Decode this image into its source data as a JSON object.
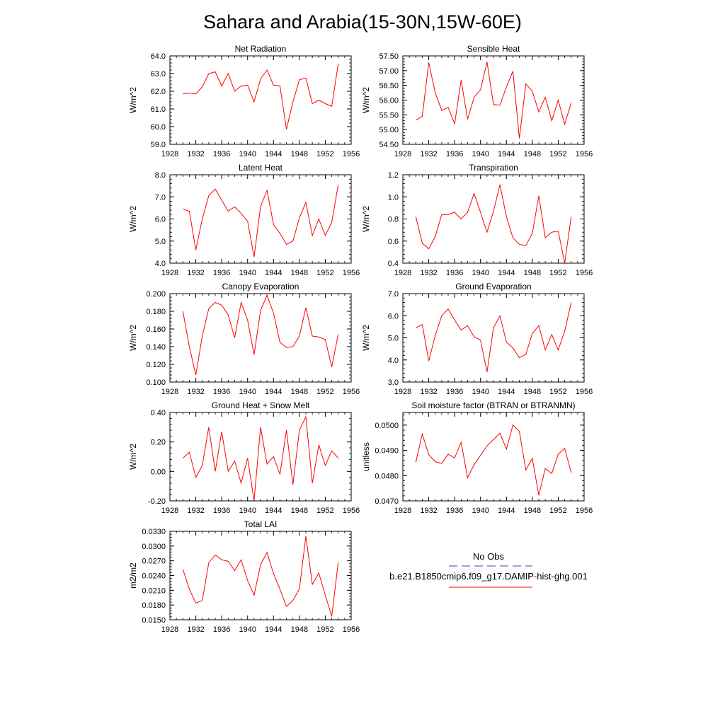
{
  "figure_title": "Sahara and Arabia(15-30N,15W-60E)",
  "legend": {
    "entries": [
      {
        "label": "No Obs",
        "color": "#4040c0",
        "dash": true
      },
      {
        "label": "b.e21.B1850cmip6.f09_g17.DAMIP-hist-ghg.001",
        "color": "#ff0000",
        "dash": false
      }
    ]
  },
  "chart_data": [
    {
      "type": "line",
      "title": "Net Radiation",
      "ylabel": "W/m^2",
      "xlim": [
        1928,
        1956
      ],
      "xticks": [
        1928,
        1932,
        1936,
        1940,
        1944,
        1948,
        1952,
        1956
      ],
      "ylim": [
        59.0,
        64.0
      ],
      "yticks": [
        59.0,
        60.0,
        61.0,
        62.0,
        63.0,
        64.0
      ],
      "ydec": 1,
      "x": [
        1930,
        1931,
        1932,
        1933,
        1934,
        1935,
        1936,
        1937,
        1938,
        1939,
        1940,
        1941,
        1942,
        1943,
        1944,
        1945,
        1946,
        1947,
        1948,
        1949,
        1950,
        1951,
        1952,
        1953,
        1954
      ],
      "series": [
        {
          "color": "#ff0000",
          "values": [
            61.85,
            61.9,
            61.85,
            62.25,
            63.0,
            63.1,
            62.3,
            63.0,
            62.0,
            62.3,
            62.35,
            61.4,
            62.7,
            63.2,
            62.35,
            62.3,
            59.85,
            61.4,
            62.65,
            62.75,
            61.3,
            61.5,
            61.3,
            61.15,
            63.55
          ]
        }
      ]
    },
    {
      "type": "line",
      "title": "Sensible Heat",
      "ylabel": "W/m^2",
      "xlim": [
        1928,
        1956
      ],
      "xticks": [
        1928,
        1932,
        1936,
        1940,
        1944,
        1948,
        1952,
        1956
      ],
      "ylim": [
        54.5,
        57.5
      ],
      "yticks": [
        54.5,
        55.0,
        55.5,
        56.0,
        56.5,
        57.0,
        57.5
      ],
      "ydec": 2,
      "x": [
        1930,
        1931,
        1932,
        1933,
        1934,
        1935,
        1936,
        1937,
        1938,
        1939,
        1940,
        1941,
        1942,
        1943,
        1944,
        1945,
        1946,
        1947,
        1948,
        1949,
        1950,
        1951,
        1952,
        1953,
        1954
      ],
      "series": [
        {
          "color": "#ff0000",
          "values": [
            55.32,
            55.45,
            57.28,
            56.25,
            55.65,
            55.75,
            55.2,
            56.68,
            55.35,
            56.1,
            56.35,
            57.3,
            55.85,
            55.83,
            56.45,
            56.98,
            54.7,
            56.55,
            56.3,
            55.6,
            56.1,
            55.3,
            56.0,
            55.18,
            55.9
          ]
        }
      ]
    },
    {
      "type": "line",
      "title": "Latent Heat",
      "ylabel": "W/m^2",
      "xlim": [
        1928,
        1956
      ],
      "xticks": [
        1928,
        1932,
        1936,
        1940,
        1944,
        1948,
        1952,
        1956
      ],
      "ylim": [
        4.0,
        8.0
      ],
      "yticks": [
        4.0,
        5.0,
        6.0,
        7.0,
        8.0
      ],
      "ydec": 1,
      "x": [
        1930,
        1931,
        1932,
        1933,
        1934,
        1935,
        1936,
        1937,
        1938,
        1939,
        1940,
        1941,
        1942,
        1943,
        1944,
        1945,
        1946,
        1947,
        1948,
        1949,
        1950,
        1951,
        1952,
        1953,
        1954
      ],
      "series": [
        {
          "color": "#ff0000",
          "values": [
            6.45,
            6.35,
            4.6,
            6.0,
            7.05,
            7.35,
            6.85,
            6.35,
            6.55,
            6.25,
            5.9,
            4.28,
            6.55,
            7.3,
            5.75,
            5.35,
            4.85,
            5.0,
            6.05,
            6.75,
            5.25,
            6.0,
            5.25,
            5.85,
            7.55
          ]
        }
      ]
    },
    {
      "type": "line",
      "title": "Transpiration",
      "ylabel": "W/m^2",
      "xlim": [
        1928,
        1956
      ],
      "xticks": [
        1928,
        1932,
        1936,
        1940,
        1944,
        1948,
        1952,
        1956
      ],
      "ylim": [
        0.4,
        1.2
      ],
      "yticks": [
        0.4,
        0.6,
        0.8,
        1.0,
        1.2
      ],
      "ydec": 1,
      "x": [
        1930,
        1931,
        1932,
        1933,
        1934,
        1935,
        1936,
        1937,
        1938,
        1939,
        1940,
        1941,
        1942,
        1943,
        1944,
        1945,
        1946,
        1947,
        1948,
        1949,
        1950,
        1951,
        1952,
        1953,
        1954
      ],
      "series": [
        {
          "color": "#ff0000",
          "values": [
            0.82,
            0.58,
            0.53,
            0.64,
            0.84,
            0.84,
            0.86,
            0.8,
            0.86,
            1.03,
            0.86,
            0.68,
            0.87,
            1.11,
            0.82,
            0.63,
            0.57,
            0.56,
            0.67,
            1.01,
            0.63,
            0.68,
            0.69,
            0.4,
            0.82
          ]
        }
      ]
    },
    {
      "type": "line",
      "title": "Canopy Evaporation",
      "ylabel": "W/m^2",
      "xlim": [
        1928,
        1956
      ],
      "xticks": [
        1928,
        1932,
        1936,
        1940,
        1944,
        1948,
        1952,
        1956
      ],
      "ylim": [
        0.1,
        0.2
      ],
      "yticks": [
        0.1,
        0.12,
        0.14,
        0.16,
        0.18,
        0.2
      ],
      "ydec": 3,
      "x": [
        1930,
        1931,
        1932,
        1933,
        1934,
        1935,
        1936,
        1937,
        1938,
        1939,
        1940,
        1941,
        1942,
        1943,
        1944,
        1945,
        1946,
        1947,
        1948,
        1949,
        1950,
        1951,
        1952,
        1953,
        1954
      ],
      "series": [
        {
          "color": "#ff0000",
          "values": [
            0.18,
            0.14,
            0.108,
            0.152,
            0.183,
            0.19,
            0.187,
            0.176,
            0.15,
            0.19,
            0.17,
            0.131,
            0.181,
            0.198,
            0.178,
            0.145,
            0.139,
            0.14,
            0.152,
            0.184,
            0.152,
            0.151,
            0.148,
            0.117,
            0.154
          ]
        }
      ]
    },
    {
      "type": "line",
      "title": "Ground Evaporation",
      "ylabel": "W/m^2",
      "xlim": [
        1928,
        1956
      ],
      "xticks": [
        1928,
        1932,
        1936,
        1940,
        1944,
        1948,
        1952,
        1956
      ],
      "ylim": [
        3.0,
        7.0
      ],
      "yticks": [
        3.0,
        4.0,
        5.0,
        6.0,
        7.0
      ],
      "ydec": 1,
      "x": [
        1930,
        1931,
        1932,
        1933,
        1934,
        1935,
        1936,
        1937,
        1938,
        1939,
        1940,
        1941,
        1942,
        1943,
        1944,
        1945,
        1946,
        1947,
        1948,
        1949,
        1950,
        1951,
        1952,
        1953,
        1954
      ],
      "series": [
        {
          "color": "#ff0000",
          "values": [
            5.45,
            5.6,
            3.95,
            5.1,
            6.0,
            6.3,
            5.8,
            5.35,
            5.55,
            5.05,
            4.9,
            3.45,
            5.45,
            6.0,
            4.8,
            4.55,
            4.1,
            4.25,
            5.2,
            5.55,
            4.45,
            5.15,
            4.45,
            5.3,
            6.6
          ]
        }
      ]
    },
    {
      "type": "line",
      "title": "Ground Heat + Snow Melt",
      "ylabel": "W/m^2",
      "xlim": [
        1928,
        1956
      ],
      "xticks": [
        1928,
        1932,
        1936,
        1940,
        1944,
        1948,
        1952,
        1956
      ],
      "ylim": [
        -0.2,
        0.4
      ],
      "yticks": [
        -0.2,
        0.0,
        0.2,
        0.4
      ],
      "ydec": 2,
      "x": [
        1930,
        1931,
        1932,
        1933,
        1934,
        1935,
        1936,
        1937,
        1938,
        1939,
        1940,
        1941,
        1942,
        1943,
        1944,
        1945,
        1946,
        1947,
        1948,
        1949,
        1950,
        1951,
        1952,
        1953,
        1954
      ],
      "series": [
        {
          "color": "#ff0000",
          "values": [
            0.09,
            0.13,
            -0.04,
            0.04,
            0.3,
            0.0,
            0.27,
            0.0,
            0.07,
            -0.08,
            0.09,
            -0.2,
            0.3,
            0.05,
            0.1,
            -0.02,
            0.28,
            -0.09,
            0.28,
            0.37,
            -0.08,
            0.18,
            0.04,
            0.14,
            0.09
          ]
        }
      ]
    },
    {
      "type": "line",
      "title": "Soil moisture factor (BTRAN or BTRANMN)",
      "ylabel": "unitless",
      "xlim": [
        1928,
        1956
      ],
      "xticks": [
        1928,
        1932,
        1936,
        1940,
        1944,
        1948,
        1952,
        1956
      ],
      "ylim": [
        0.047,
        0.0505
      ],
      "yticks": [
        0.047,
        0.048,
        0.049,
        0.05
      ],
      "ydec": 4,
      "x": [
        1930,
        1931,
        1932,
        1933,
        1934,
        1935,
        1936,
        1937,
        1938,
        1939,
        1940,
        1941,
        1942,
        1943,
        1944,
        1945,
        1946,
        1947,
        1948,
        1949,
        1950,
        1951,
        1952,
        1953,
        1954
      ],
      "series": [
        {
          "color": "#ff0000",
          "values": [
            0.04853,
            0.04965,
            0.04883,
            0.04855,
            0.04848,
            0.04885,
            0.0487,
            0.04932,
            0.04792,
            0.04843,
            0.0488,
            0.04918,
            0.04943,
            0.04968,
            0.04905,
            0.05,
            0.04975,
            0.04822,
            0.04868,
            0.04722,
            0.04828,
            0.04808,
            0.04885,
            0.04908,
            0.04812
          ]
        }
      ]
    },
    {
      "type": "line",
      "title": "Total LAI",
      "ylabel": "m2/m2",
      "xlim": [
        1928,
        1956
      ],
      "xticks": [
        1928,
        1932,
        1936,
        1940,
        1944,
        1948,
        1952,
        1956
      ],
      "ylim": [
        0.015,
        0.033
      ],
      "yticks": [
        0.015,
        0.018,
        0.021,
        0.024,
        0.027,
        0.03,
        0.033
      ],
      "ydec": 4,
      "x": [
        1930,
        1931,
        1932,
        1933,
        1934,
        1935,
        1936,
        1937,
        1938,
        1939,
        1940,
        1941,
        1942,
        1943,
        1944,
        1945,
        1946,
        1947,
        1948,
        1949,
        1950,
        1951,
        1952,
        1953,
        1954
      ],
      "series": [
        {
          "color": "#ff0000",
          "values": [
            0.0253,
            0.0212,
            0.0184,
            0.0189,
            0.0266,
            0.0282,
            0.0272,
            0.0269,
            0.025,
            0.0272,
            0.023,
            0.02,
            0.0262,
            0.0287,
            0.0244,
            0.0212,
            0.0177,
            0.0189,
            0.0213,
            0.032,
            0.0222,
            0.0245,
            0.02,
            0.0157,
            0.0267
          ]
        }
      ]
    }
  ]
}
